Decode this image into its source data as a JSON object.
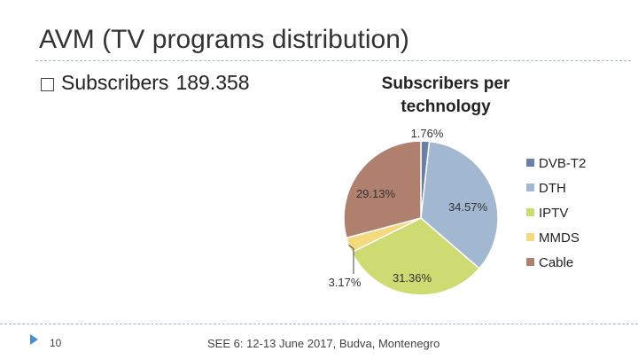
{
  "slide": {
    "title": "AVM (TV programs distribution)",
    "bullet_label": "Subscribers",
    "bullet_value": "189.358",
    "page_number": "10",
    "footer": "SEE 6: 12-13 June 2017, Budva, Montenegro"
  },
  "chart_data": {
    "type": "pie",
    "title_lines": [
      "Subscribers per",
      "technology"
    ],
    "legend_position": "right",
    "slices": [
      {
        "name": "DVB-T2",
        "value": 1.76,
        "label": "1.76%",
        "color": "#6b7ea3"
      },
      {
        "name": "DTH",
        "value": 34.57,
        "label": "34.57%",
        "color": "#a2b8d0"
      },
      {
        "name": "IPTV",
        "value": 31.36,
        "label": "31.36%",
        "color": "#cedb72"
      },
      {
        "name": "MMDS",
        "value": 3.17,
        "label": "3.17%",
        "color": "#f5d97f"
      },
      {
        "name": "Cable",
        "value": 29.13,
        "label": "29.13%",
        "color": "#b0806f"
      }
    ]
  }
}
